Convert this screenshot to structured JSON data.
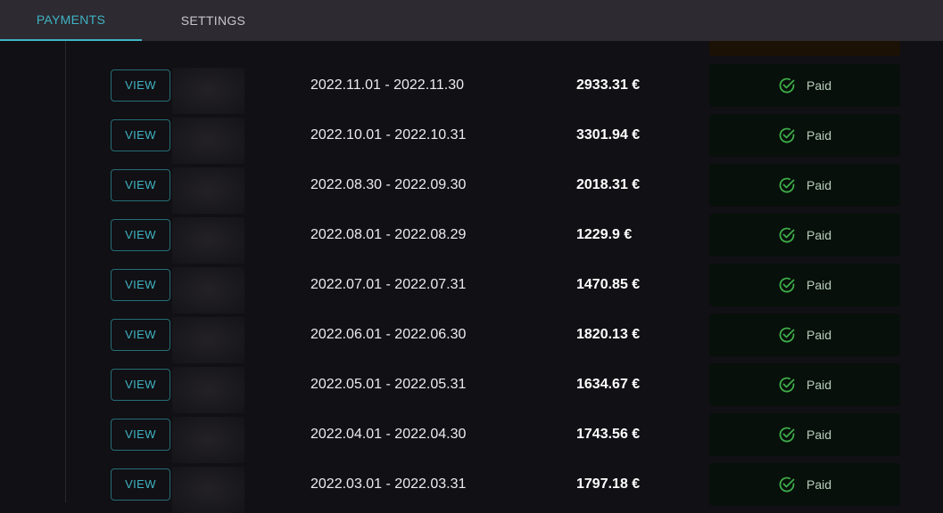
{
  "tabs": [
    {
      "label": "PAYMENTS",
      "active": true
    },
    {
      "label": "SETTINGS",
      "active": false
    }
  ],
  "colors": {
    "accent": "#3fb4c4",
    "paid": "#3fae4a",
    "header_bg": "#2d2a31",
    "page_bg": "#111014"
  },
  "payments": [
    {
      "button": "VIEW",
      "period": "2022.11.01 - 2022.11.30",
      "amount": "2933.31 €",
      "status": "Paid",
      "status_icon": "check-circle-icon"
    },
    {
      "button": "VIEW",
      "period": "2022.10.01 - 2022.10.31",
      "amount": "3301.94 €",
      "status": "Paid",
      "status_icon": "check-circle-icon"
    },
    {
      "button": "VIEW",
      "period": "2022.08.30 - 2022.09.30",
      "amount": "2018.31 €",
      "status": "Paid",
      "status_icon": "check-circle-icon"
    },
    {
      "button": "VIEW",
      "period": "2022.08.01 - 2022.08.29",
      "amount": "1229.9 €",
      "status": "Paid",
      "status_icon": "check-circle-icon"
    },
    {
      "button": "VIEW",
      "period": "2022.07.01 - 2022.07.31",
      "amount": "1470.85 €",
      "status": "Paid",
      "status_icon": "check-circle-icon"
    },
    {
      "button": "VIEW",
      "period": "2022.06.01 - 2022.06.30",
      "amount": "1820.13 €",
      "status": "Paid",
      "status_icon": "check-circle-icon"
    },
    {
      "button": "VIEW",
      "period": "2022.05.01 - 2022.05.31",
      "amount": "1634.67 €",
      "status": "Paid",
      "status_icon": "check-circle-icon"
    },
    {
      "button": "VIEW",
      "period": "2022.04.01 - 2022.04.30",
      "amount": "1743.56 €",
      "status": "Paid",
      "status_icon": "check-circle-icon"
    },
    {
      "button": "VIEW",
      "period": "2022.03.01 - 2022.03.31",
      "amount": "1797.18 €",
      "status": "Paid",
      "status_icon": "check-circle-icon"
    }
  ]
}
